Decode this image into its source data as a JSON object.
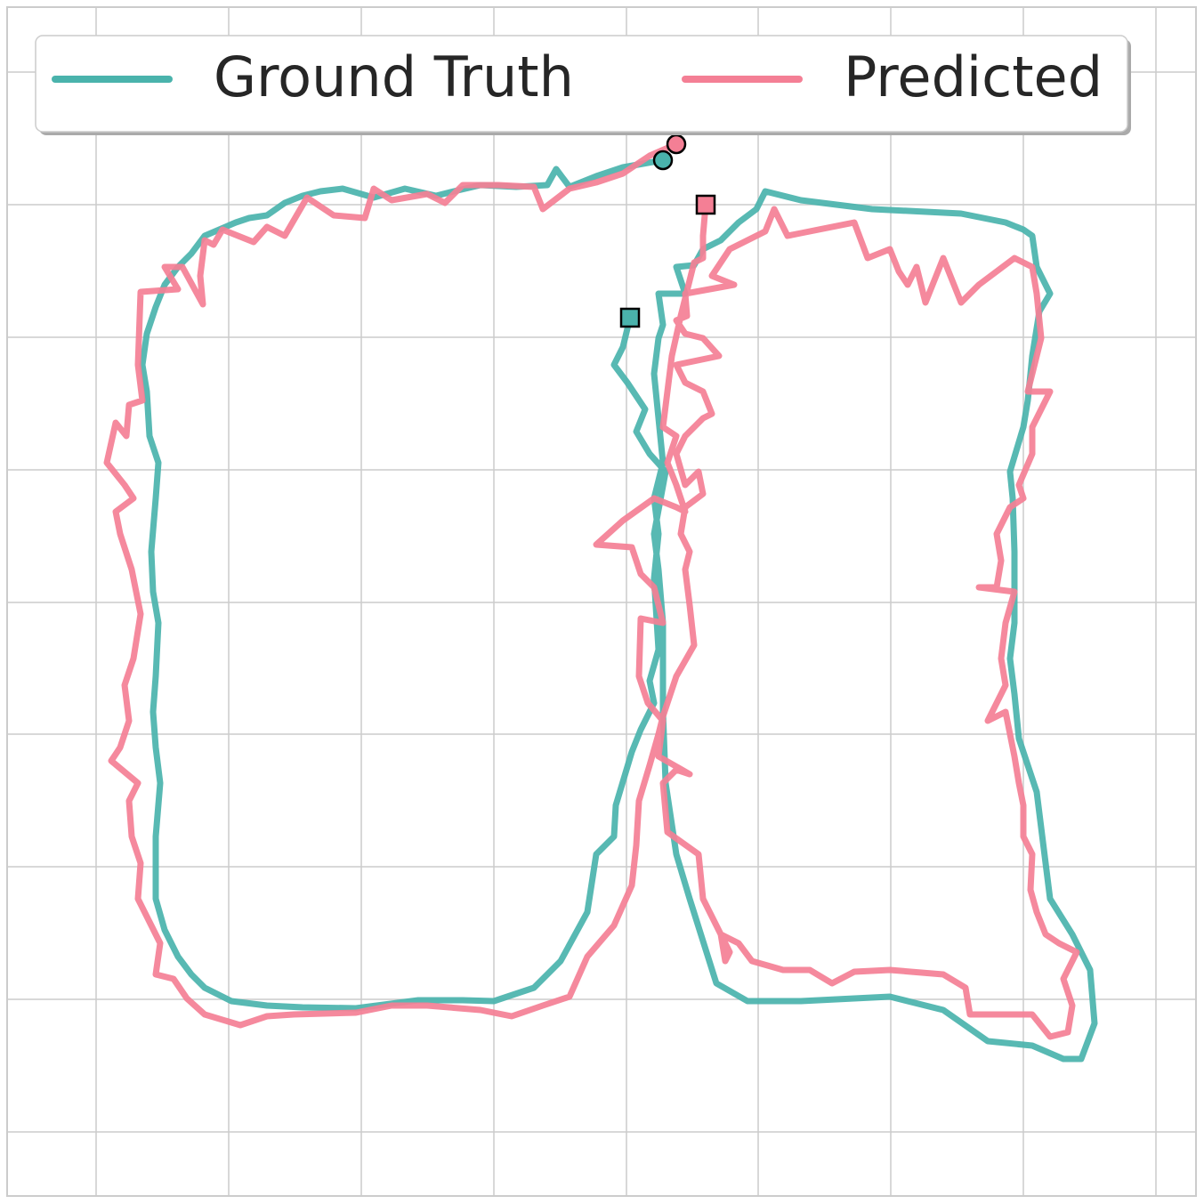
{
  "chart_data": {
    "type": "line",
    "xlim": [
      8,
      1344
    ],
    "ylim": [
      1344,
      8
    ],
    "xticks": [
      108,
      257,
      406,
      555,
      704,
      852,
      1001,
      1150,
      1299
    ],
    "yticks": [
      81,
      230,
      379,
      528,
      677,
      825,
      974,
      1123,
      1272
    ],
    "grid": true,
    "legend": "upper center",
    "series": [
      {
        "name": "Ground Truth",
        "color": "#4ab3ac",
        "x": [
          745,
          700,
          670,
          640,
          625,
          615,
          580,
          540,
          510,
          490,
          455,
          420,
          385,
          360,
          340,
          320,
          300,
          280,
          265,
          230,
          215,
          200,
          185,
          175,
          165,
          160,
          165,
          168,
          178,
          175,
          170,
          172,
          178,
          175,
          172,
          175,
          180,
          175,
          175,
          185,
          200,
          215,
          230,
          260,
          300,
          340,
          400,
          470,
          520,
          555,
          600,
          630,
          660,
          670,
          690,
          692,
          710,
          720,
          735,
          730,
          740,
          735,
          740,
          735,
          745,
          740,
          735,
          740,
          745,
          740,
          770,
          760,
          780,
          790,
          810,
          830,
          850,
          860,
          900,
          940,
          980,
          1080,
          1130,
          1150,
          1160,
          1165,
          1180,
          1168,
          1160,
          1155,
          1150,
          1135,
          1138,
          1140,
          1140,
          1135,
          1140,
          1145,
          1165,
          1170,
          1180,
          1205,
          1225,
          1230,
          1215,
          1195,
          1160,
          1110,
          1060,
          1000,
          900,
          840,
          805,
          775,
          760,
          748,
          745,
          745,
          740,
          735,
          748,
          730,
          715,
          725,
          705,
          690,
          700,
          708
        ],
        "y": [
          180,
          188,
          198,
          210,
          190,
          208,
          210,
          208,
          215,
          220,
          212,
          222,
          212,
          215,
          220,
          228,
          242,
          245,
          250,
          265,
          285,
          300,
          320,
          345,
          375,
          410,
          440,
          490,
          520,
          560,
          620,
          665,
          700,
          760,
          800,
          840,
          880,
          940,
          1010,
          1045,
          1075,
          1095,
          1110,
          1125,
          1130,
          1132,
          1133,
          1124,
          1124,
          1125,
          1110,
          1080,
          1025,
          960,
          940,
          905,
          845,
          820,
          790,
          765,
          730,
          650,
          600,
          560,
          520,
          470,
          420,
          380,
          365,
          330,
          330,
          300,
          298,
          280,
          270,
          250,
          235,
          215,
          225,
          230,
          235,
          240,
          250,
          258,
          265,
          300,
          330,
          350,
          400,
          450,
          480,
          530,
          560,
          620,
          700,
          740,
          780,
          830,
          890,
          930,
          1010,
          1050,
          1090,
          1150,
          1190,
          1190,
          1175,
          1170,
          1135,
          1120,
          1125,
          1125,
          1105,
          1010,
          960,
          880,
          800,
          700,
          640,
          600,
          530,
          510,
          485,
          460,
          430,
          410,
          390,
          357
        ]
      },
      {
        "name": "Predicted",
        "color": "#f47f95",
        "x": [
          760,
          730,
          700,
          670,
          640,
          610,
          600,
          560,
          520,
          500,
          480,
          440,
          420,
          410,
          375,
          345,
          320,
          300,
          285,
          250,
          240,
          230,
          225,
          228,
          205,
          185,
          200,
          158,
          155,
          160,
          145,
          142,
          130,
          120,
          140,
          150,
          130,
          135,
          148,
          158,
          150,
          140,
          145,
          135,
          125,
          155,
          145,
          148,
          158,
          155,
          170,
          180,
          175,
          195,
          210,
          230,
          270,
          300,
          330,
          400,
          440,
          480,
          540,
          575,
          610,
          640,
          660,
          690,
          710,
          715,
          718,
          730,
          740,
          745,
          760,
          780,
          775,
          770,
          775,
          765,
          770,
          790,
          785,
          770,
          760,
          770,
          790,
          800,
          790,
          770,
          760,
          808,
          790,
          770,
          760,
          772,
          770,
          825,
          800,
          820,
          860,
          870,
          885,
          900,
          960,
          975,
          1000,
          1010,
          1020,
          1030,
          1040,
          1060,
          1080,
          1100,
          1140,
          1160,
          1165,
          1170,
          1155,
          1180,
          1160,
          1160,
          1145,
          1150,
          1135,
          1120,
          1125,
          1120,
          1100,
          1140,
          1130,
          1125,
          1130,
          1110,
          1130,
          1140,
          1145,
          1150,
          1150,
          1160,
          1158,
          1165,
          1175,
          1190,
          1210,
          1195,
          1205,
          1200,
          1180,
          1160,
          1120,
          1090,
          1085,
          1060,
          1000,
          960,
          935,
          910,
          880,
          845,
          830,
          810,
          815,
          820,
          805,
          790,
          785,
          750,
          745,
          760,
          775,
          740,
          745,
          728,
          718,
          720,
          745,
          735,
          720,
          710,
          670,
          700,
          735,
          760,
          770,
          760,
          750,
          760,
          745,
          750,
          755,
          765,
          780,
          790,
          790,
          793
        ],
        "y": [
          162,
          175,
          195,
          205,
          212,
          235,
          210,
          208,
          208,
          228,
          218,
          225,
          212,
          245,
          242,
          222,
          265,
          255,
          272,
          258,
          275,
          270,
          310,
          342,
          300,
          300,
          325,
          328,
          410,
          450,
          455,
          490,
          475,
          520,
          545,
          560,
          575,
          600,
          640,
          690,
          740,
          770,
          810,
          840,
          855,
          880,
          900,
          940,
          970,
          1010,
          1040,
          1060,
          1095,
          1100,
          1122,
          1140,
          1152,
          1142,
          1140,
          1138,
          1130,
          1130,
          1135,
          1142,
          1130,
          1120,
          1075,
          1040,
          995,
          950,
          900,
          860,
          825,
          805,
          760,
          725,
          680,
          640,
          620,
          600,
          570,
          555,
          530,
          545,
          510,
          490,
          470,
          465,
          440,
          430,
          410,
          400,
          380,
          375,
          360,
          355,
          330,
          320,
          310,
          280,
          260,
          235,
          265,
          262,
          250,
          290,
          280,
          305,
          320,
          300,
          340,
          290,
          340,
          320,
          290,
          300,
          330,
          380,
          440,
          440,
          480,
          510,
          545,
          560,
          570,
          600,
          630,
          660,
          660,
          665,
          700,
          740,
          770,
          810,
          800,
          850,
          880,
          905,
          940,
          960,
          1000,
          1025,
          1050,
          1060,
          1070,
          1100,
          1130,
          1160,
          1165,
          1140,
          1140,
          1140,
          1110,
          1095,
          1090,
          1092,
          1105,
          1090,
          1090,
          1080,
          1060,
          1050,
          1080,
          1070,
          1040,
          1010,
          960,
          935,
          880,
          865,
          870,
          850,
          810,
          790,
          760,
          695,
          700,
          660,
          645,
          615,
          612,
          585,
          560,
          570,
          575,
          545,
          520,
          490,
          480,
          440,
          400,
          355,
          295,
          290,
          265,
          230
        ]
      }
    ]
  }
}
